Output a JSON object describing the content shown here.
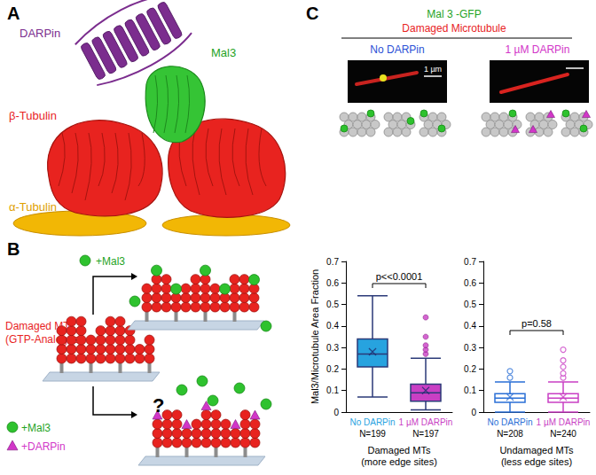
{
  "panel_a": {
    "label": "A",
    "darpin": "DARPin",
    "mal3": "Mal3",
    "beta": "β-Tubulin",
    "alpha": "α-Tubulin"
  },
  "panel_b": {
    "label": "B",
    "damaged": [
      "Damaged MT",
      "(GTP-Analogue)"
    ],
    "mal3": "+Mal3",
    "mal3_darpin": [
      "+Mal3",
      "+DARPin"
    ],
    "question": "?"
  },
  "panel_c": {
    "label": "C",
    "construct": "Mal 3 -GFP",
    "substrate": "Damaged Microtubule",
    "conditions": [
      "No DARPin",
      "1 µM DARPin"
    ],
    "scale_bar": "1 µm"
  },
  "chart_data": [
    {
      "type": "boxplot",
      "ylabel": "Mal3/Microtubule Area Fraction",
      "xlabel": [
        "Damaged MTs",
        "(more edge sites)"
      ],
      "annotations": [
        "p<<0.0001"
      ],
      "categories": [
        "No DARPin",
        "1 µM DARPin"
      ],
      "n_labels": [
        "N=199",
        "N=197"
      ],
      "colors": [
        "#27a3df",
        "#c93fc4"
      ],
      "boxes": [
        [
          0.07,
          0.21,
          0.27,
          0.34,
          0.54
        ],
        [
          0.01,
          0.05,
          0.09,
          0.13,
          0.25
        ]
      ],
      "means": [
        0.28,
        0.1
      ],
      "outliers": [
        [],
        [
          0.27,
          0.29,
          0.31,
          0.35,
          0.44
        ]
      ],
      "marker": "circle",
      "ylim": [
        0,
        0.7
      ],
      "yticks": [
        0,
        0.1,
        0.2,
        0.3,
        0.4,
        0.5,
        0.6,
        0.7
      ],
      "grid": false
    },
    {
      "type": "boxplot",
      "xlabel": [
        "Undamaged MTs",
        "(less edge sites)"
      ],
      "annotations": [
        "p=0.58"
      ],
      "categories": [
        "No DARPin",
        "1 µM DARPin"
      ],
      "n_labels": [
        "N=208",
        "N=240"
      ],
      "colors": [
        "#2a6fd6",
        "#c93fc4"
      ],
      "boxes": [
        [
          0.0,
          0.045,
          0.065,
          0.085,
          0.14
        ],
        [
          0.0,
          0.045,
          0.065,
          0.085,
          0.14
        ]
      ],
      "means": [
        0.07,
        0.07
      ],
      "outliers": [
        [
          0.16,
          0.19
        ],
        [
          0.16,
          0.18,
          0.21,
          0.24,
          0.29
        ]
      ],
      "marker": "open circle",
      "ylim": [
        0,
        0.7
      ],
      "yticks": [
        0,
        0.1,
        0.2,
        0.3,
        0.4,
        0.5,
        0.6,
        0.7
      ],
      "grid": false
    }
  ]
}
